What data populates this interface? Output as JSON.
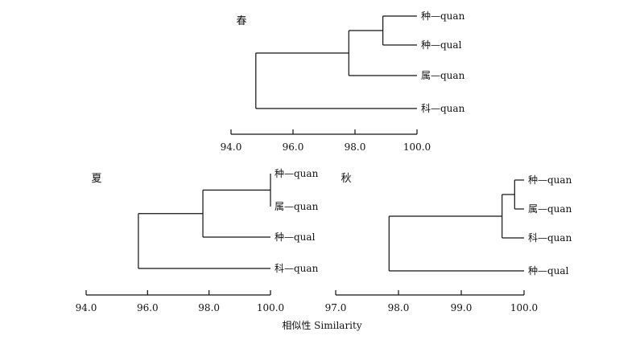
{
  "chart_data": [
    {
      "type": "dendrogram",
      "title": "春",
      "xlim": [
        94.0,
        100.0
      ],
      "ticks": [
        "94.0",
        "96.0",
        "98.0",
        "100.0"
      ],
      "leaves": [
        "种—quan",
        "种—qual",
        "属—quan",
        "科—quan"
      ],
      "merges": [
        {
          "left": "种—quan",
          "right": "种—qual",
          "similarity": 98.9
        },
        {
          "left": "(种—quan, 种—qual)",
          "right": "属—quan",
          "similarity": 97.8
        },
        {
          "left": "(种—quan, 种—qual, 属—quan)",
          "right": "科—quan",
          "similarity": 94.8
        }
      ]
    },
    {
      "type": "dendrogram",
      "title": "夏",
      "xlim": [
        94.0,
        100.0
      ],
      "ticks": [
        "94.0",
        "96.0",
        "98.0",
        "100.0"
      ],
      "leaves": [
        "种—quan",
        "属—quan",
        "种—qual",
        "科—quan"
      ],
      "merges": [
        {
          "left": "种—quan",
          "right": "属—quan",
          "similarity": 100.0
        },
        {
          "left": "(种—quan, 属—quan)",
          "right": "种—qual",
          "similarity": 97.8
        },
        {
          "left": "(种—quan, 属—quan, 种—qual)",
          "right": "科—quan",
          "similarity": 95.7
        }
      ]
    },
    {
      "type": "dendrogram",
      "title": "秋",
      "xlim": [
        97.0,
        100.0
      ],
      "ticks": [
        "97.0",
        "98.0",
        "99.0",
        "100.0"
      ],
      "leaves": [
        "种—quan",
        "属—quan",
        "科—quan",
        "种—qual"
      ],
      "merges": [
        {
          "left": "种—quan",
          "right": "属—quan",
          "similarity": 99.85
        },
        {
          "left": "(种—quan, 属—quan)",
          "right": "科—quan",
          "similarity": 99.65
        },
        {
          "left": "(种—quan, 属—quan, 科—quan)",
          "right": "种—qual",
          "similarity": 97.85
        }
      ]
    }
  ],
  "shared_xlabel": "相似性 Similarity"
}
